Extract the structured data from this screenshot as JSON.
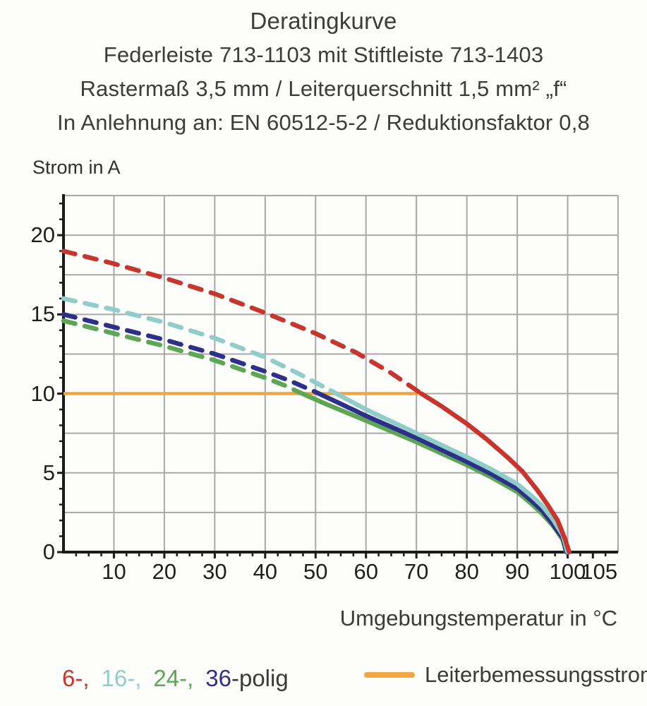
{
  "header": {
    "title": "Deratingkurve",
    "subtitle1": "Federleiste 713-1103 mit Stiftleiste 713-1403",
    "subtitle2": "Rastermaß 3,5 mm / Leiterquerschnitt 1,5 mm² „f“",
    "subtitle3": "In Anlehnung an: EN 60512-5-2 / Reduktionsfaktor 0,8"
  },
  "colors": {
    "red": "#c8352c",
    "cyan": "#90cdc9",
    "green": "#5da653",
    "navy": "#2d2f8a",
    "orange": "#f2a440",
    "grid": "#a8a8a8",
    "axis": "#1b1b1b",
    "text": "#3a3a3a"
  },
  "chart_data": {
    "type": "line",
    "title": "Deratingkurve",
    "ylabel": "Strom in A",
    "xlabel": "Umgebungstemperatur in °C",
    "xlim": [
      0,
      110
    ],
    "ylim": [
      0,
      22.5
    ],
    "x_ticks": [
      10,
      20,
      30,
      40,
      50,
      60,
      70,
      80,
      90,
      100,
      105
    ],
    "y_ticks": [
      0,
      5,
      10,
      15,
      20
    ],
    "x_grid_step": 10,
    "y_grid_step": 2.5,
    "x_minor_step": 2.5,
    "y_minor_step": 1,
    "grid": true,
    "legend_position": "bottom",
    "series": [
      {
        "name": "24-polig",
        "color": "#5da653",
        "dashed_points": [
          [
            0,
            14.6
          ],
          [
            10,
            13.8
          ],
          [
            20,
            13.0
          ],
          [
            30,
            12.1
          ],
          [
            40,
            11.0
          ],
          [
            44,
            10.5
          ],
          [
            47,
            10.05
          ]
        ],
        "solid_points": [
          [
            47,
            10.05
          ],
          [
            52,
            9.35
          ],
          [
            60,
            8.3
          ],
          [
            70,
            6.95
          ],
          [
            80,
            5.5
          ],
          [
            85,
            4.7
          ],
          [
            90,
            3.8
          ],
          [
            93,
            3.0
          ],
          [
            95,
            2.4
          ],
          [
            97,
            1.7
          ],
          [
            99,
            0.8
          ],
          [
            99.7,
            0
          ]
        ]
      },
      {
        "name": "36-polig",
        "color": "#2d2f8a",
        "dashed_points": [
          [
            0,
            15.0
          ],
          [
            10,
            14.2
          ],
          [
            20,
            13.4
          ],
          [
            30,
            12.5
          ],
          [
            40,
            11.4
          ],
          [
            45,
            10.8
          ],
          [
            50,
            10.1
          ]
        ],
        "solid_points": [
          [
            50,
            10.1
          ],
          [
            55,
            9.35
          ],
          [
            60,
            8.6
          ],
          [
            70,
            7.2
          ],
          [
            80,
            5.7
          ],
          [
            85,
            4.9
          ],
          [
            90,
            4.0
          ],
          [
            93,
            3.2
          ],
          [
            95,
            2.6
          ],
          [
            97,
            1.8
          ],
          [
            99,
            0.9
          ],
          [
            99.8,
            0
          ]
        ]
      },
      {
        "name": "16-polig",
        "color": "#90cdc9",
        "dashed_points": [
          [
            0,
            16.0
          ],
          [
            10,
            15.3
          ],
          [
            20,
            14.5
          ],
          [
            30,
            13.5
          ],
          [
            40,
            12.3
          ],
          [
            47,
            11.2
          ],
          [
            53,
            10.2
          ]
        ],
        "solid_points": [
          [
            53,
            10.2
          ],
          [
            60,
            9.0
          ],
          [
            70,
            7.5
          ],
          [
            80,
            6.0
          ],
          [
            85,
            5.2
          ],
          [
            90,
            4.3
          ],
          [
            93,
            3.5
          ],
          [
            95,
            2.9
          ],
          [
            97,
            2.1
          ],
          [
            99,
            1.1
          ],
          [
            100,
            0
          ]
        ]
      },
      {
        "name": "6-polig",
        "color": "#c8352c",
        "dashed_points": [
          [
            0,
            19.0
          ],
          [
            10,
            18.2
          ],
          [
            20,
            17.3
          ],
          [
            30,
            16.3
          ],
          [
            40,
            15.1
          ],
          [
            50,
            13.8
          ],
          [
            58,
            12.6
          ],
          [
            65,
            11.3
          ],
          [
            71,
            10.0
          ]
        ],
        "solid_points": [
          [
            71,
            10.0
          ],
          [
            75,
            9.2
          ],
          [
            80,
            8.1
          ],
          [
            84,
            7.1
          ],
          [
            88,
            6.0
          ],
          [
            91,
            5.1
          ],
          [
            94,
            3.9
          ],
          [
            96,
            3.0
          ],
          [
            98,
            2.0
          ],
          [
            99.5,
            0.8
          ],
          [
            100.3,
            0
          ]
        ]
      }
    ],
    "reference_line": {
      "name": "Leiterbemessungsstrom",
      "color": "#f2a440",
      "y": 10,
      "x_start": 0,
      "x_end": 71.5
    }
  },
  "legend": {
    "poles": [
      {
        "text": "6-,",
        "color": "#c8352c"
      },
      {
        "text": "16-,",
        "color": "#90cdc9"
      },
      {
        "text": "24-,",
        "color": "#5da653"
      },
      {
        "text": "36",
        "color": "#2d2f8a"
      },
      {
        "text": "-polig",
        "color": "#3a3a3a"
      }
    ],
    "reference_label": "Leiterbemessungsstrom"
  }
}
